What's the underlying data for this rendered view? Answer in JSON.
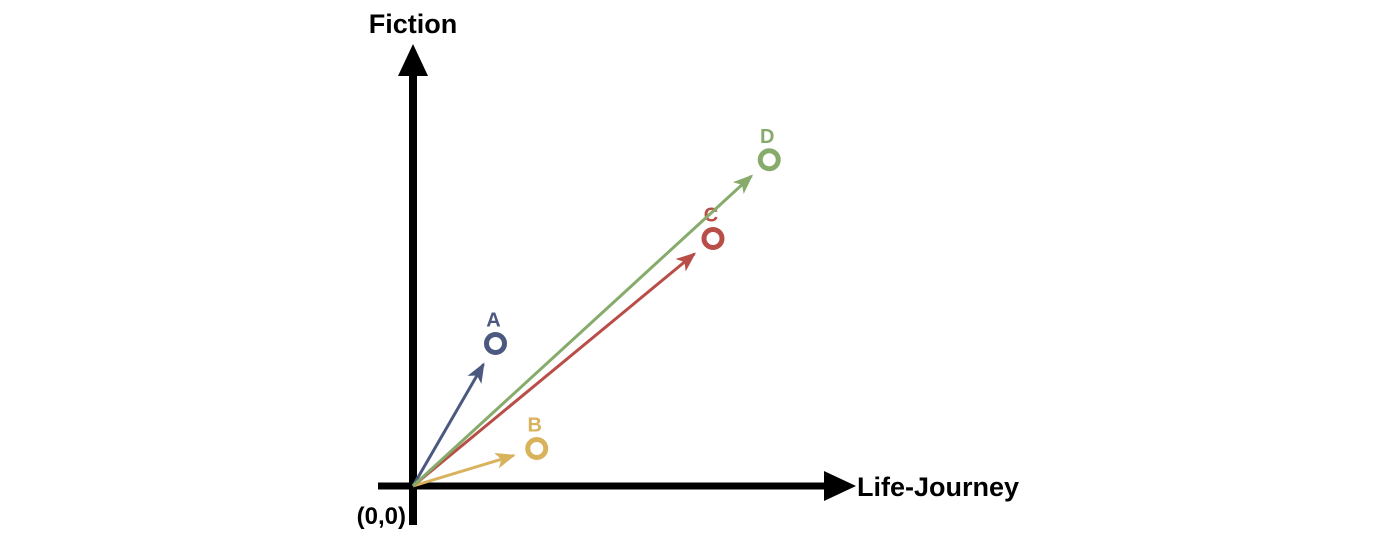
{
  "axes": {
    "y_label": "Fiction",
    "x_label": "Life-Journey",
    "origin_label": "(0,0)"
  },
  "vectors": [
    {
      "label": "A",
      "color": "#4b587f",
      "x": 1.1,
      "y": 1.9
    },
    {
      "label": "B",
      "color": "#d9b25c",
      "x": 1.65,
      "y": 0.5
    },
    {
      "label": "C",
      "color": "#b94e48",
      "x": 4.0,
      "y": 3.3
    },
    {
      "label": "D",
      "color": "#86ab6b",
      "x": 4.75,
      "y": 4.35
    }
  ]
}
